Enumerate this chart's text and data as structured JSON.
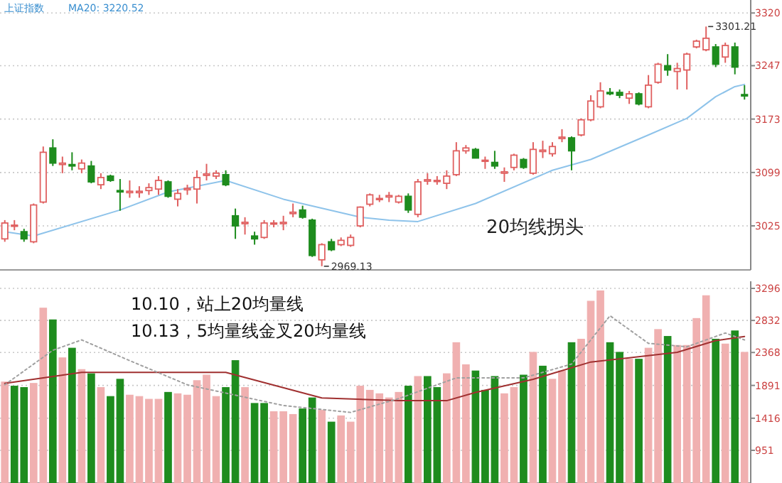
{
  "chart_data": [
    {
      "type": "candlestick",
      "title": "上证指数",
      "tick_labels": "y",
      "grid": "y",
      "ylim": [
        2964,
        3338
      ],
      "yticks": [
        3025,
        3099,
        3173,
        3247,
        3320
      ],
      "categories": [
        null,
        null,
        null,
        null,
        null,
        null,
        null,
        null,
        null,
        null,
        null,
        null,
        null,
        null,
        null,
        null,
        null,
        null,
        null,
        null,
        null,
        null,
        null,
        null,
        null,
        null,
        null,
        null,
        null,
        null,
        null,
        null,
        null,
        null,
        null,
        null,
        null,
        null,
        null,
        null,
        null,
        null,
        null,
        null,
        null,
        null,
        null,
        null,
        null,
        null,
        null,
        null,
        null,
        null,
        null,
        null,
        null,
        null,
        null,
        null,
        null,
        null,
        null,
        null,
        null,
        null,
        null,
        null,
        null,
        null,
        null,
        null,
        null,
        null,
        null,
        null,
        null,
        null
      ],
      "ohlc": [
        [
          3007,
          3033,
          3003,
          3029
        ],
        [
          3025,
          3033,
          3019,
          3026
        ],
        [
          3017,
          3021,
          3003,
          3007
        ],
        [
          3003,
          3056,
          3001,
          3054
        ],
        [
          3058,
          3135,
          3056,
          3127
        ],
        [
          3133,
          3145,
          3108,
          3112
        ],
        [
          3110,
          3121,
          3098,
          3112
        ],
        [
          3110,
          3127,
          3102,
          3108
        ],
        [
          3104,
          3117,
          3098,
          3112
        ],
        [
          3108,
          3115,
          3084,
          3086
        ],
        [
          3082,
          3098,
          3076,
          3092
        ],
        [
          3094,
          3096,
          3086,
          3088
        ],
        [
          3074,
          3090,
          3046,
          3072
        ],
        [
          3071,
          3088,
          3064,
          3073
        ],
        [
          3071,
          3080,
          3064,
          3073
        ],
        [
          3074,
          3084,
          3068,
          3078
        ],
        [
          3076,
          3094,
          3068,
          3088
        ],
        [
          3086,
          3088,
          3064,
          3066
        ],
        [
          3062,
          3076,
          3052,
          3070
        ],
        [
          3075,
          3082,
          3068,
          3077
        ],
        [
          3076,
          3102,
          3056,
          3092
        ],
        [
          3095,
          3111,
          3088,
          3097
        ],
        [
          3094,
          3102,
          3090,
          3098
        ],
        [
          3096,
          3102,
          3080,
          3082
        ],
        [
          3039,
          3049,
          3007,
          3025
        ],
        [
          3028,
          3037,
          3013,
          3030
        ],
        [
          3011,
          3017,
          2999,
          3007
        ],
        [
          3009,
          3033,
          3007,
          3029
        ],
        [
          3028,
          3033,
          3023,
          3029
        ],
        [
          3028,
          3039,
          3019,
          3030
        ],
        [
          3042,
          3056,
          3037,
          3044
        ],
        [
          3047,
          3053,
          3035,
          3037
        ],
        [
          3033,
          3035,
          2982,
          2984
        ],
        [
          2978,
          3001,
          2969.13,
          2999
        ],
        [
          3003,
          3007,
          2990,
          2992
        ],
        [
          2999,
          3009,
          2997,
          3005
        ],
        [
          2998,
          3013,
          2996,
          3009
        ],
        [
          3025,
          3052,
          3023,
          3051
        ],
        [
          3055,
          3070,
          3052,
          3068
        ],
        [
          3062,
          3068,
          3058,
          3063
        ],
        [
          3065,
          3072,
          3058,
          3067
        ],
        [
          3058,
          3068,
          3056,
          3066
        ],
        [
          3066,
          3070,
          3043,
          3047
        ],
        [
          3041,
          3090,
          3037,
          3086
        ],
        [
          3087,
          3098,
          3082,
          3089
        ],
        [
          3087,
          3094,
          3082,
          3088
        ],
        [
          3084,
          3102,
          3076,
          3094
        ],
        [
          3096,
          3141,
          3094,
          3129
        ],
        [
          3129,
          3137,
          3125,
          3133
        ],
        [
          3131,
          3133,
          3119,
          3119
        ],
        [
          3115,
          3121,
          3104,
          3116
        ],
        [
          3113,
          3129,
          3104,
          3108
        ],
        [
          3098,
          3106,
          3086,
          3100
        ],
        [
          3106,
          3125,
          3102,
          3123
        ],
        [
          3117,
          3119,
          3104,
          3106
        ],
        [
          3098,
          3141,
          3096,
          3131
        ],
        [
          3128,
          3143,
          3119,
          3130
        ],
        [
          3125,
          3141,
          3121,
          3135
        ],
        [
          3146,
          3159,
          3141,
          3148
        ],
        [
          3147,
          3149,
          3102,
          3129
        ],
        [
          3151,
          3174,
          3149,
          3172
        ],
        [
          3172,
          3206,
          3170,
          3198
        ],
        [
          3190,
          3224,
          3188,
          3212
        ],
        [
          3210,
          3216,
          3206,
          3208
        ],
        [
          3210,
          3214,
          3202,
          3206
        ],
        [
          3202,
          3212,
          3194,
          3208
        ],
        [
          3208,
          3210,
          3192,
          3194
        ],
        [
          3190,
          3234,
          3188,
          3220
        ],
        [
          3224,
          3251,
          3222,
          3249
        ],
        [
          3247,
          3263,
          3233,
          3241
        ],
        [
          3239,
          3251,
          3214,
          3243
        ],
        [
          3241,
          3265,
          3214,
          3263
        ],
        [
          3273,
          3283,
          3271,
          3281
        ],
        [
          3269,
          3301.21,
          3267,
          3285
        ],
        [
          3273,
          3277,
          3245,
          3249
        ],
        [
          3259,
          3279,
          3251,
          3275
        ],
        [
          3273,
          3279,
          3235,
          3245
        ],
        [
          3207,
          3220,
          3200,
          3205
        ]
      ],
      "colors": [
        "#e06060",
        "#e06060",
        "#1e8c1e",
        "#e06060",
        "#e06060",
        "#1e8c1e",
        "#e06060",
        "#1e8c1e",
        "#e06060",
        "#1e8c1e",
        "#e06060",
        "#1e8c1e",
        "#1e8c1e",
        "#e06060",
        "#e06060",
        "#e06060",
        "#e06060",
        "#1e8c1e",
        "#e06060",
        "#e06060",
        "#e06060",
        "#e06060",
        "#e06060",
        "#1e8c1e",
        "#1e8c1e",
        "#e06060",
        "#1e8c1e",
        "#e06060",
        "#e06060",
        "#e06060",
        "#e06060",
        "#1e8c1e",
        "#1e8c1e",
        "#e06060",
        "#1e8c1e",
        "#e06060",
        "#e06060",
        "#e06060",
        "#e06060",
        "#e06060",
        "#e06060",
        "#e06060",
        "#1e8c1e",
        "#e06060",
        "#e06060",
        "#e06060",
        "#e06060",
        "#e06060",
        "#e06060",
        "#1e8c1e",
        "#e06060",
        "#1e8c1e",
        "#e06060",
        "#e06060",
        "#1e8c1e",
        "#e06060",
        "#e06060",
        "#e06060",
        "#e06060",
        "#1e8c1e",
        "#e06060",
        "#e06060",
        "#e06060",
        "#1e8c1e",
        "#1e8c1e",
        "#e06060",
        "#1e8c1e",
        "#e06060",
        "#e06060",
        "#1e8c1e",
        "#e06060",
        "#e06060",
        "#e06060",
        "#e06060",
        "#1e8c1e",
        "#e06060",
        "#1e8c1e",
        "#1e8c1e"
      ],
      "series": [
        {
          "type": "line",
          "color": "#8ec3ea",
          "values": [
            3017,
            null,
            null,
            3011,
            null,
            null,
            null,
            null,
            null,
            null,
            null,
            null,
            3047,
            null,
            null,
            null,
            null,
            3072,
            null,
            null,
            null,
            null,
            null,
            3088,
            null,
            null,
            null,
            null,
            null,
            3062,
            null,
            null,
            null,
            null,
            null,
            null,
            null,
            3037,
            null,
            null,
            3033,
            null,
            null,
            3031,
            null,
            null,
            null,
            null,
            null,
            3056,
            null,
            null,
            null,
            null,
            null,
            null,
            null,
            3102,
            null,
            null,
            null,
            3117,
            null,
            null,
            null,
            null,
            null,
            3151,
            null,
            null,
            null,
            3174,
            null,
            null,
            3204,
            null,
            3218,
            3221
          ]
        }
      ],
      "annotations": [
        "MA20: 3220.52",
        "20均线拐头",
        "2969.13",
        "3301.21"
      ]
    },
    {
      "type": "bar",
      "tick_labels": "y",
      "grid": "y",
      "ylim": [
        478,
        3399
      ],
      "yticks": [
        951,
        1416,
        1891,
        2368,
        2832,
        3296
      ],
      "categories": [
        null,
        null,
        null,
        null,
        null,
        null,
        null,
        null,
        null,
        null,
        null,
        null,
        null,
        null,
        null,
        null,
        null,
        null,
        null,
        null,
        null,
        null,
        null,
        null,
        null,
        null,
        null,
        null,
        null,
        null,
        null,
        null,
        null,
        null,
        null,
        null,
        null,
        null,
        null,
        null,
        null,
        null,
        null,
        null,
        null,
        null,
        null,
        null,
        null,
        null,
        null,
        null,
        null,
        null,
        null,
        null,
        null,
        null,
        null,
        null,
        null,
        null,
        null,
        null,
        null,
        null,
        null,
        null,
        null,
        null,
        null,
        null,
        null,
        null,
        null,
        null,
        null,
        null
      ],
      "values": [
        1940,
        1880,
        1860,
        1920,
        3010,
        2840,
        2290,
        2430,
        2120,
        2060,
        1860,
        1730,
        1980,
        1750,
        1730,
        1690,
        1690,
        1790,
        1770,
        1750,
        1960,
        2040,
        1730,
        1860,
        2250,
        1860,
        1630,
        1630,
        1510,
        1510,
        1470,
        1550,
        1710,
        1530,
        1360,
        1450,
        1360,
        1880,
        1820,
        1770,
        1710,
        1790,
        1880,
        2020,
        2020,
        1860,
        2060,
        2510,
        2190,
        2100,
        1820,
        2020,
        1770,
        1860,
        2040,
        2370,
        2170,
        1980,
        2100,
        2510,
        2560,
        3110,
        3260,
        2510,
        2370,
        2270,
        2270,
        2430,
        2700,
        2600,
        2470,
        2470,
        2860,
        3190,
        2560,
        2490,
        2680,
        2370
      ],
      "colors": [
        "#f0b0b0",
        "#1e8c1e",
        "#1e8c1e",
        "#f0b0b0",
        "#f0b0b0",
        "#1e8c1e",
        "#f0b0b0",
        "#1e8c1e",
        "#f0b0b0",
        "#1e8c1e",
        "#f0b0b0",
        "#1e8c1e",
        "#1e8c1e",
        "#f0b0b0",
        "#f0b0b0",
        "#f0b0b0",
        "#f0b0b0",
        "#1e8c1e",
        "#f0b0b0",
        "#f0b0b0",
        "#f0b0b0",
        "#f0b0b0",
        "#f0b0b0",
        "#1e8c1e",
        "#1e8c1e",
        "#f0b0b0",
        "#1e8c1e",
        "#1e8c1e",
        "#f0b0b0",
        "#f0b0b0",
        "#f0b0b0",
        "#1e8c1e",
        "#1e8c1e",
        "#f0b0b0",
        "#1e8c1e",
        "#f0b0b0",
        "#f0b0b0",
        "#f0b0b0",
        "#f0b0b0",
        "#f0b0b0",
        "#f0b0b0",
        "#f0b0b0",
        "#1e8c1e",
        "#f0b0b0",
        "#1e8c1e",
        "#1e8c1e",
        "#f0b0b0",
        "#f0b0b0",
        "#f0b0b0",
        "#1e8c1e",
        "#1e8c1e",
        "#1e8c1e",
        "#f0b0b0",
        "#f0b0b0",
        "#1e8c1e",
        "#f0b0b0",
        "#1e8c1e",
        "#f0b0b0",
        "#f0b0b0",
        "#1e8c1e",
        "#f0b0b0",
        "#f0b0b0",
        "#f0b0b0",
        "#1e8c1e",
        "#1e8c1e",
        "#f0b0b0",
        "#1e8c1e",
        "#f0b0b0",
        "#f0b0b0",
        "#1e8c1e",
        "#f0b0b0",
        "#f0b0b0",
        "#f0b0b0",
        "#f0b0b0",
        "#1e8c1e",
        "#f0b0b0",
        "#1e8c1e",
        "#f0b0b0"
      ],
      "series": [
        {
          "type": "line",
          "color": "#a03030",
          "values": [
            1920,
            null,
            null,
            null,
            null,
            null,
            null,
            null,
            2080,
            null,
            null,
            null,
            null,
            null,
            null,
            null,
            null,
            null,
            null,
            null,
            null,
            null,
            null,
            2080,
            null,
            null,
            null,
            null,
            null,
            null,
            null,
            null,
            null,
            1710,
            null,
            null,
            null,
            null,
            null,
            null,
            null,
            1670,
            null,
            null,
            null,
            null,
            1670,
            null,
            null,
            1790,
            null,
            null,
            null,
            null,
            null,
            1980,
            null,
            null,
            null,
            null,
            null,
            2230,
            null,
            null,
            null,
            2290,
            null,
            null,
            null,
            null,
            2370,
            null,
            null,
            null,
            2540,
            null,
            null,
            2600
          ]
        },
        {
          "type": "line",
          "color": "#a0a0a0",
          "line_style": "dotted",
          "values": [
            1900,
            null,
            null,
            null,
            null,
            2400,
            null,
            null,
            2550,
            null,
            null,
            null,
            null,
            2250,
            null,
            null,
            null,
            null,
            null,
            1900,
            null,
            null,
            null,
            null,
            null,
            null,
            null,
            null,
            null,
            1600,
            null,
            null,
            null,
            null,
            null,
            null,
            1500,
            null,
            null,
            null,
            null,
            1700,
            null,
            null,
            null,
            null,
            null,
            2000,
            null,
            null,
            null,
            null,
            null,
            null,
            2000,
            null,
            null,
            null,
            null,
            2200,
            null,
            null,
            null,
            2900,
            null,
            null,
            null,
            2500,
            null,
            null,
            null,
            2450,
            null,
            null,
            null,
            2650,
            null,
            2550
          ]
        }
      ],
      "annotations": [
        "10.10，站上20均量线",
        "10.13，5均量线金叉20均量线"
      ]
    }
  ]
}
